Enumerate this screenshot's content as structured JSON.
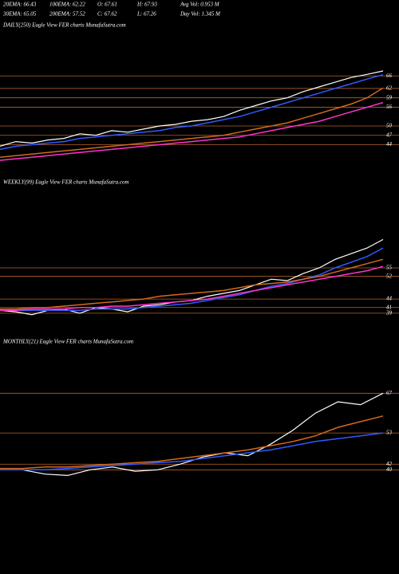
{
  "header": {
    "rows": [
      [
        "20EMA: 66.43",
        "100EMA: 62.22",
        "O: 67.61",
        "H: 67.93",
        "Avg Vol: 0.953 M"
      ],
      [
        "30EMA: 65.05",
        "200EMA: 57.52",
        "C: 67.62",
        "L: 67.26",
        "Day Vol: 1.345 M"
      ]
    ]
  },
  "chart_data": [
    {
      "type": "line",
      "title": "DAILY(250) Eagle  View  FER charts MunafaSutra.com",
      "ylim": [
        38,
        75
      ],
      "yticks": [
        66,
        62,
        59,
        56,
        50,
        47,
        44
      ],
      "grid": true,
      "grid_color": "#b8642a",
      "series": [
        {
          "color": "#ffffff",
          "values": [
            43.5,
            45,
            44.5,
            45.5,
            46,
            47.5,
            47,
            48.5,
            48,
            49,
            50,
            50.5,
            51.5,
            52,
            53,
            55,
            56.5,
            58,
            59,
            61,
            62.5,
            64,
            65.5,
            66.5,
            67.6
          ]
        },
        {
          "color": "#2f5bff",
          "values": [
            42.5,
            43.5,
            44,
            44.5,
            45,
            46,
            46.5,
            47,
            47.5,
            48,
            48.5,
            49.5,
            50,
            51,
            52,
            53,
            54.5,
            56,
            57.5,
            59,
            60.5,
            62,
            63.5,
            65,
            66.4
          ]
        },
        {
          "color": "#d2691e",
          "values": [
            40,
            40.5,
            41,
            41.5,
            42,
            42.5,
            43,
            43.5,
            44,
            44.5,
            45,
            45.5,
            46,
            46.5,
            47,
            48,
            49,
            50,
            51,
            52.5,
            54,
            55.5,
            57,
            59,
            62.2
          ]
        },
        {
          "color": "#ff33cc",
          "values": [
            39,
            39.5,
            40,
            40.5,
            41,
            41.5,
            42,
            42.5,
            43,
            43.5,
            44,
            44.5,
            45,
            45.5,
            46,
            46.5,
            47.5,
            48.5,
            49.5,
            50.5,
            51.5,
            53,
            54.5,
            56,
            57.5
          ]
        }
      ]
    },
    {
      "type": "line",
      "title": "WEEKLY(99) Eagle  View  FER charts MunafaSutra.com",
      "ylim": [
        37,
        82
      ],
      "yticks": [
        55,
        52,
        44,
        41,
        39
      ],
      "grid": true,
      "grid_color": "#b8642a",
      "series": [
        {
          "color": "#ffffff",
          "values": [
            40,
            39.5,
            38.5,
            40,
            40.5,
            39,
            41,
            40.5,
            39.5,
            41.5,
            42,
            43,
            43.5,
            45,
            46,
            47,
            49,
            51,
            50.5,
            53,
            55,
            58,
            60,
            62,
            65
          ]
        },
        {
          "color": "#2f5bff",
          "values": [
            40,
            40,
            40,
            40,
            40,
            40,
            40.5,
            40.5,
            40.5,
            41,
            41.5,
            42,
            42.5,
            43.5,
            44.5,
            45.5,
            47,
            48.5,
            49.5,
            51,
            52.5,
            55,
            57,
            59,
            62
          ]
        },
        {
          "color": "#d2691e",
          "values": [
            40.5,
            40.5,
            41,
            41,
            41.5,
            42,
            42.5,
            43,
            43.5,
            44,
            45,
            45.5,
            46,
            46.5,
            47,
            48,
            49,
            49.5,
            50,
            51,
            52,
            53.5,
            55,
            56.5,
            58
          ]
        },
        {
          "color": "#ff33cc",
          "values": [
            40,
            40,
            40.5,
            40.5,
            40.5,
            41,
            41,
            41.5,
            41.5,
            42,
            42.5,
            43,
            43.5,
            44,
            45,
            46,
            47,
            48,
            49,
            50,
            51,
            52,
            53,
            54,
            55.5
          ]
        }
      ]
    },
    {
      "type": "line",
      "title": "MONTHLY(21) Eagle  View  FER charts MunafaSutra.com",
      "ylim": [
        37,
        82
      ],
      "yticks": [
        67,
        53,
        42,
        40
      ],
      "grid": true,
      "grid_color": "#b8642a",
      "series": [
        {
          "color": "#ffffff",
          "values": [
            40,
            40,
            38.5,
            38,
            40,
            41,
            39.5,
            40,
            42,
            44.5,
            46,
            45,
            49,
            54,
            60,
            64,
            63,
            67
          ]
        },
        {
          "color": "#2f5bff",
          "values": [
            40,
            40,
            40,
            40.5,
            41,
            41.5,
            42,
            42.5,
            43,
            44,
            45,
            46,
            47,
            48.5,
            50,
            51,
            52,
            53
          ]
        },
        {
          "color": "#d2691e",
          "values": [
            40.5,
            40.5,
            41,
            41,
            41.5,
            42,
            42.5,
            43,
            44,
            45,
            46,
            47,
            48.5,
            50,
            52,
            55,
            57,
            59
          ]
        }
      ]
    }
  ]
}
